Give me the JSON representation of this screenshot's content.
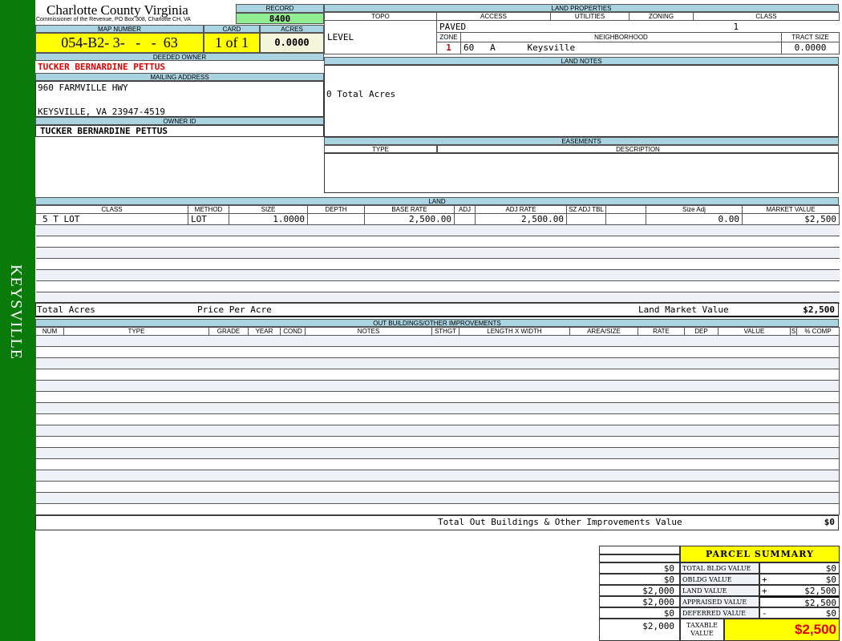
{
  "sidebar": {
    "label": "KEYSVILLE"
  },
  "header": {
    "title": "Charlotte County Virginia",
    "subtitle": "Commissioner of the Revenue, PO Box 308, Charlotte CH, VA",
    "record_label": "RECORD",
    "record": "8400",
    "map_label": "MAP NUMBER",
    "map_number": "054-B2- 3-   -   -  63",
    "card_label": "CARD",
    "card": "1 of 1",
    "acres_label": "ACRES",
    "acres": "0.0000"
  },
  "owner": {
    "deeded_label": "DEEDED OWNER",
    "deeded": "TUCKER BERNARDINE PETTUS",
    "mailing_label": "MAILING ADDRESS",
    "address1": "960 FARMVILLE HWY",
    "address2": "KEYSVILLE, VA 23947-4519",
    "owner_id_label": "OWNER ID",
    "owner_id": "TUCKER BERNARDINE PETTUS"
  },
  "land_properties": {
    "title": "LAND PROPERTIES",
    "topo_label": "TOPO",
    "access_label": "ACCESS",
    "utilities_label": "UTILITIES",
    "zoning_label": "ZONING",
    "class_label": "CLASS",
    "topo": "LEVEL",
    "access": "PAVED",
    "class": "1",
    "zone_label": "ZONE",
    "neighborhood_label": "NEIGHBORHOOD",
    "tract_label": "TRACT SIZE",
    "zone": "1",
    "neighborhood": "60   A      Keysville",
    "tract_size": "0.0000"
  },
  "land_notes": {
    "title": "LAND NOTES",
    "text": "0 Total Acres"
  },
  "easements": {
    "title": "EASEMENTS",
    "type_label": "TYPE",
    "description_label": "DESCRIPTION"
  },
  "land": {
    "title": "LAND",
    "columns": [
      "CLASS",
      "METHOD",
      "SIZE",
      "DEPTH",
      "BASE RATE",
      "ADJ",
      "ADJ RATE",
      "SZ ADJ TBL",
      "",
      "Size Adj",
      "MARKET VALUE"
    ],
    "rows": [
      [
        "5 T LOT",
        "LOT",
        "1.0000",
        "",
        "2,500.00",
        "",
        "2,500.00",
        "",
        "",
        "0.00",
        "$2,500"
      ]
    ],
    "total_acres_label": "Total Acres",
    "price_per_acre_label": "Price Per Acre",
    "market_value_label": "Land Market Value",
    "market_value": "$2,500"
  },
  "outbuildings": {
    "title": "OUT BUILDINGS/OTHER IMPROVEMENTS",
    "columns": [
      "NUM",
      "TYPE",
      "GRADE",
      "YEAR",
      "COND",
      "NOTES",
      "STHGT",
      "LENGTH X WIDTH",
      "AREA/SIZE",
      "RATE",
      "DEP",
      "VALUE",
      "S",
      "% COMP"
    ],
    "total_label": "Total Out Buildings & Other Improvements Value",
    "total": "$0"
  },
  "summary": {
    "title": "PARCEL SUMMARY",
    "rows": [
      {
        "prior": "$0",
        "label": "TOTAL BLDG VALUE",
        "op": "",
        "value": "$0"
      },
      {
        "prior": "$0",
        "label": "OBLDG VALUE",
        "op": "+",
        "value": "$0"
      },
      {
        "prior": "$2,000",
        "label": "LAND VALUE",
        "op": "+",
        "value": "$2,500"
      },
      {
        "prior": "$2,000",
        "label": "APPRAISED VALUE",
        "op": "",
        "value": "$2,500"
      },
      {
        "prior": "$0",
        "label": "DEFERRED VALUE",
        "op": "-",
        "value": "$0"
      }
    ],
    "taxable_prior": "$2,000",
    "taxable_label": "TAXABLE VALUE",
    "taxable": "$2,500"
  },
  "colors": {
    "sidebar": "#0a7a0a",
    "header": "#aad4e2",
    "highlight": "#ffff00",
    "record": "#90ee90",
    "owner_red": "#e00000"
  }
}
